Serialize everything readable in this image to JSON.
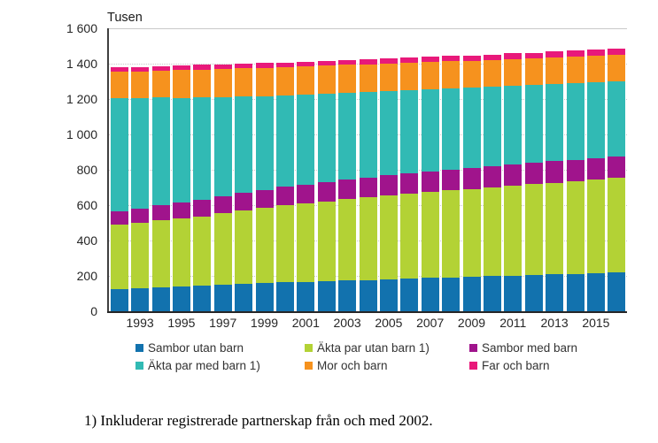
{
  "chart_data": {
    "type": "bar",
    "stacked": true,
    "title": "Tusen",
    "unit": "Tusen",
    "x": [
      1992,
      1993,
      1994,
      1995,
      1996,
      1997,
      1998,
      1999,
      2000,
      2001,
      2002,
      2003,
      2004,
      2005,
      2006,
      2007,
      2008,
      2009,
      2010,
      2011,
      2012,
      2013,
      2014,
      2015,
      2016
    ],
    "x_tick_labels": [
      "1993",
      "1995",
      "1997",
      "1999",
      "2001",
      "2003",
      "2005",
      "2007",
      "2009",
      "2011",
      "2013",
      "2015"
    ],
    "series": [
      {
        "name": "Sambor utan barn",
        "color": "#1272ae",
        "values": [
          124,
          129,
          135,
          140,
          145,
          150,
          155,
          159,
          164,
          167,
          170,
          174,
          177,
          181,
          184,
          188,
          191,
          194,
          198,
          201,
          205,
          209,
          212,
          216,
          220
        ]
      },
      {
        "name": "Äkta par utan barn 1)",
        "color": "#b3d235",
        "values": [
          365,
          372,
          379,
          385,
          392,
          403,
          414,
          425,
          436,
          444,
          452,
          460,
          468,
          474,
          481,
          487,
          493,
          498,
          503,
          508,
          513,
          518,
          523,
          528,
          533
        ]
      },
      {
        "name": "Sambor med barn",
        "color": "#a0148c",
        "values": [
          77,
          81,
          85,
          89,
          93,
          96,
          99,
          102,
          104,
          106,
          108,
          110,
          112,
          114,
          115,
          117,
          118,
          119,
          119,
          120,
          120,
          121,
          121,
          122,
          122
        ]
      },
      {
        "name": "Äkta par med barn 1)",
        "color": "#31bab4",
        "values": [
          640,
          624,
          609,
          593,
          578,
          562,
          546,
          531,
          515,
          507,
          499,
          490,
          482,
          476,
          470,
          464,
          458,
          454,
          450,
          447,
          443,
          439,
          435,
          430,
          426
        ]
      },
      {
        "name": "Mor och barn",
        "color": "#f6921e",
        "values": [
          147,
          150,
          153,
          156,
          159,
          159,
          160,
          160,
          160,
          160,
          159,
          159,
          158,
          157,
          155,
          154,
          153,
          152,
          151,
          151,
          150,
          150,
          151,
          151,
          151
        ]
      },
      {
        "name": "Far och barn",
        "color": "#e8197a",
        "values": [
          25,
          26,
          26,
          27,
          27,
          27,
          27,
          28,
          28,
          28,
          28,
          29,
          29,
          29,
          29,
          30,
          30,
          30,
          30,
          31,
          31,
          31,
          32,
          32,
          33
        ]
      }
    ],
    "ylim": [
      0,
      1600
    ],
    "ytick_step": 200,
    "ytick_labels": [
      "0",
      "200",
      "400",
      "600",
      "800",
      "1 000",
      "1 200",
      "1 400",
      "1 600"
    ],
    "grid": true,
    "legend_position": "bottom",
    "legend_rows": 2,
    "legend_columns": 3
  },
  "footnote": {
    "text": "1) Inkluderar registrerade partnerskap från och med 2002."
  }
}
